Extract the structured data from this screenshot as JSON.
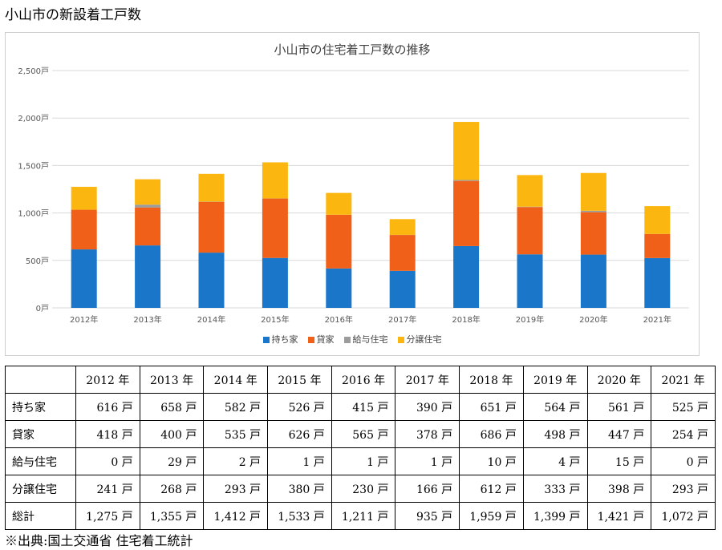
{
  "page_title": "小山市の新設着工戸数",
  "footnote": "※出典:国土交通省 住宅着工統計",
  "colors": {
    "series": [
      "#1a76c8",
      "#f06018",
      "#9c9c9c",
      "#fbb610"
    ],
    "grid": "#d9d9d9"
  },
  "chart_data": {
    "type": "bar",
    "stacked": true,
    "title": "小山市の住宅着工戸数の推移",
    "categories": [
      "2012年",
      "2013年",
      "2014年",
      "2015年",
      "2016年",
      "2017年",
      "2018年",
      "2019年",
      "2020年",
      "2021年"
    ],
    "series": [
      {
        "name": "持ち家",
        "values": [
          616,
          658,
          582,
          526,
          415,
          390,
          651,
          564,
          561,
          525
        ]
      },
      {
        "name": "貸家",
        "values": [
          418,
          400,
          535,
          626,
          565,
          378,
          686,
          498,
          447,
          254
        ]
      },
      {
        "name": "給与住宅",
        "values": [
          0,
          29,
          2,
          1,
          1,
          1,
          10,
          4,
          15,
          0
        ]
      },
      {
        "name": "分譲住宅",
        "values": [
          241,
          268,
          293,
          380,
          230,
          166,
          612,
          333,
          398,
          293
        ]
      }
    ],
    "yticks": [
      "0戸",
      "500戸",
      "1,000戸",
      "1,500戸",
      "2,000戸",
      "2,500戸"
    ],
    "ylim": [
      0,
      2500
    ],
    "grid": true,
    "legend_position": "bottom"
  },
  "table": {
    "headers": [
      "",
      "2012 年",
      "2013 年",
      "2014 年",
      "2015 年",
      "2016 年",
      "2017 年",
      "2018 年",
      "2019 年",
      "2020 年",
      "2021 年"
    ],
    "rows": [
      {
        "label": "持ち家",
        "cells": [
          "616 戸",
          "658 戸",
          "582 戸",
          "526 戸",
          "415 戸",
          "390 戸",
          "651 戸",
          "564 戸",
          "561 戸",
          "525 戸"
        ]
      },
      {
        "label": "貸家",
        "cells": [
          "418 戸",
          "400 戸",
          "535 戸",
          "626 戸",
          "565 戸",
          "378 戸",
          "686 戸",
          "498 戸",
          "447 戸",
          "254 戸"
        ]
      },
      {
        "label": "給与住宅",
        "cells": [
          "0 戸",
          "29 戸",
          "2 戸",
          "1 戸",
          "1 戸",
          "1 戸",
          "10 戸",
          "4 戸",
          "15 戸",
          "0 戸"
        ]
      },
      {
        "label": "分譲住宅",
        "cells": [
          "241 戸",
          "268 戸",
          "293 戸",
          "380 戸",
          "230 戸",
          "166 戸",
          "612 戸",
          "333 戸",
          "398 戸",
          "293 戸"
        ]
      },
      {
        "label": "総計",
        "cells": [
          "1,275 戸",
          "1,355 戸",
          "1,412 戸",
          "1,533 戸",
          "1,211 戸",
          "935 戸",
          "1,959 戸",
          "1,399 戸",
          "1,421 戸",
          "1,072 戸"
        ]
      }
    ]
  }
}
